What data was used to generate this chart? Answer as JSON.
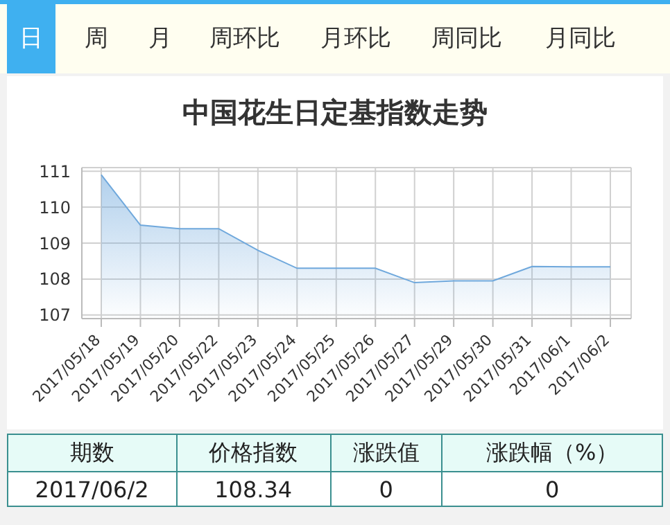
{
  "chart_data": {
    "type": "area",
    "title": "中国花生日定基指数走势",
    "categories": [
      "2017/05/18",
      "2017/05/19",
      "2017/05/20",
      "2017/05/22",
      "2017/05/23",
      "2017/05/24",
      "2017/05/25",
      "2017/05/26",
      "2017/05/27",
      "2017/05/29",
      "2017/05/30",
      "2017/05/31",
      "2017/06/1",
      "2017/06/2"
    ],
    "series": [
      {
        "color": "#6fa8dc",
        "values": [
          110.9,
          109.5,
          109.4,
          109.4,
          108.8,
          108.3,
          108.3,
          108.3,
          107.9,
          107.95,
          107.95,
          108.35,
          108.34,
          108.34
        ]
      }
    ],
    "ylim": [
      106.9,
      111.1
    ],
    "yticks": [
      107,
      108,
      109,
      110,
      111
    ],
    "grid": true,
    "legend": false,
    "annotations": [
      "日",
      "周",
      "月",
      "周环比",
      "月环比",
      "周同比",
      "月同比",
      "期数",
      "价格指数",
      "涨跌值",
      "涨跌幅（%）",
      "2017/06/2",
      "108.34",
      "0",
      "0"
    ]
  }
}
